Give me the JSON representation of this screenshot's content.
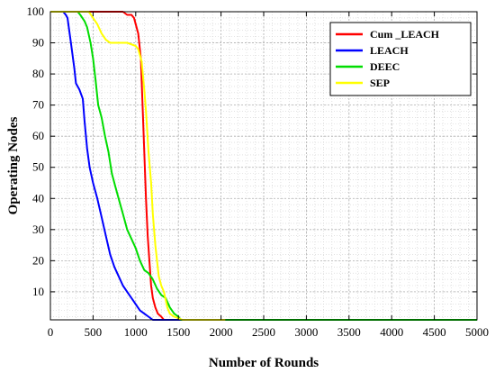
{
  "chart_data": {
    "type": "line",
    "xlabel": "Number of Rounds",
    "ylabel": "Operating Nodes",
    "xlim": [
      0,
      5000
    ],
    "ylim": [
      1,
      100
    ],
    "xticks": [
      0,
      500,
      1000,
      1500,
      2000,
      2500,
      3000,
      3500,
      4000,
      4500,
      5000
    ],
    "yticks": [
      10,
      20,
      30,
      40,
      50,
      60,
      70,
      80,
      90,
      100
    ],
    "grid": true,
    "minor_grid": true,
    "legend_position": "top-right",
    "series": [
      {
        "name": "Cum _LEACH",
        "color": "#ff0000",
        "points": [
          [
            0,
            100
          ],
          [
            850,
            100
          ],
          [
            900,
            99
          ],
          [
            950,
            99
          ],
          [
            980,
            98
          ],
          [
            1000,
            96
          ],
          [
            1030,
            93
          ],
          [
            1060,
            85
          ],
          [
            1080,
            70
          ],
          [
            1100,
            55
          ],
          [
            1120,
            40
          ],
          [
            1140,
            28
          ],
          [
            1160,
            20
          ],
          [
            1180,
            12
          ],
          [
            1200,
            8
          ],
          [
            1230,
            5
          ],
          [
            1260,
            3
          ],
          [
            1300,
            2
          ],
          [
            1330,
            1
          ],
          [
            5000,
            1
          ]
        ]
      },
      {
        "name": "LEACH",
        "color": "#0000ff",
        "points": [
          [
            0,
            100
          ],
          [
            150,
            100
          ],
          [
            180,
            99
          ],
          [
            200,
            98
          ],
          [
            240,
            90
          ],
          [
            280,
            82
          ],
          [
            300,
            77
          ],
          [
            340,
            75
          ],
          [
            380,
            72
          ],
          [
            400,
            65
          ],
          [
            430,
            56
          ],
          [
            460,
            50
          ],
          [
            500,
            45
          ],
          [
            550,
            40
          ],
          [
            600,
            34
          ],
          [
            650,
            28
          ],
          [
            700,
            22
          ],
          [
            750,
            18
          ],
          [
            800,
            15
          ],
          [
            850,
            12
          ],
          [
            900,
            10
          ],
          [
            950,
            8
          ],
          [
            1000,
            6
          ],
          [
            1050,
            4
          ],
          [
            1100,
            3
          ],
          [
            1150,
            2
          ],
          [
            1200,
            1
          ],
          [
            5000,
            1
          ]
        ]
      },
      {
        "name": "DEEC",
        "color": "#00dd00",
        "points": [
          [
            0,
            100
          ],
          [
            320,
            100
          ],
          [
            350,
            99
          ],
          [
            400,
            97
          ],
          [
            430,
            95
          ],
          [
            470,
            90
          ],
          [
            500,
            85
          ],
          [
            530,
            78
          ],
          [
            560,
            70
          ],
          [
            600,
            66
          ],
          [
            640,
            60
          ],
          [
            680,
            55
          ],
          [
            720,
            48
          ],
          [
            760,
            44
          ],
          [
            800,
            40
          ],
          [
            850,
            35
          ],
          [
            900,
            30
          ],
          [
            950,
            27
          ],
          [
            1000,
            24
          ],
          [
            1050,
            20
          ],
          [
            1100,
            17
          ],
          [
            1150,
            16
          ],
          [
            1200,
            14
          ],
          [
            1250,
            11
          ],
          [
            1300,
            9
          ],
          [
            1350,
            8
          ],
          [
            1400,
            5
          ],
          [
            1450,
            3
          ],
          [
            1500,
            2
          ],
          [
            1530,
            1
          ],
          [
            5000,
            1
          ]
        ]
      },
      {
        "name": "SEP",
        "color": "#ffff00",
        "points": [
          [
            0,
            100
          ],
          [
            450,
            100
          ],
          [
            500,
            98
          ],
          [
            550,
            96
          ],
          [
            600,
            93
          ],
          [
            650,
            91
          ],
          [
            700,
            90
          ],
          [
            800,
            90
          ],
          [
            900,
            90
          ],
          [
            1000,
            89
          ],
          [
            1030,
            88
          ],
          [
            1070,
            84
          ],
          [
            1100,
            75
          ],
          [
            1120,
            68
          ],
          [
            1150,
            55
          ],
          [
            1180,
            45
          ],
          [
            1200,
            35
          ],
          [
            1230,
            25
          ],
          [
            1250,
            20
          ],
          [
            1270,
            15
          ],
          [
            1300,
            12
          ],
          [
            1330,
            10
          ],
          [
            1370,
            5
          ],
          [
            1400,
            3
          ],
          [
            1450,
            2
          ],
          [
            1550,
            1
          ],
          [
            2050,
            1
          ]
        ]
      }
    ]
  }
}
